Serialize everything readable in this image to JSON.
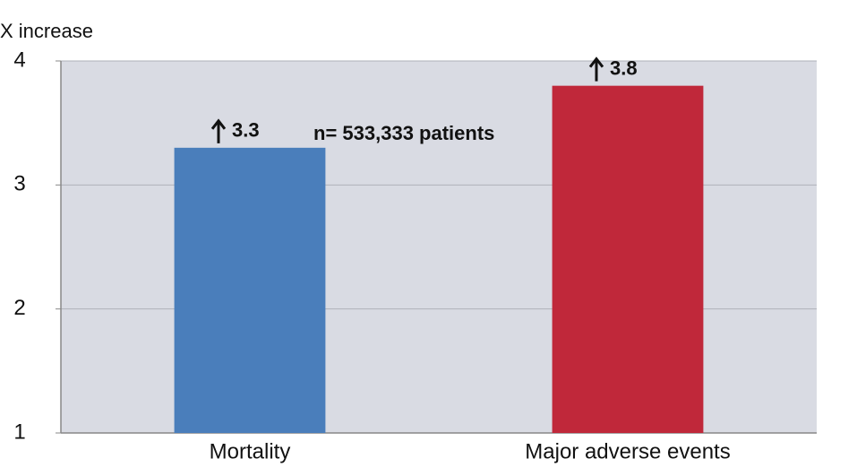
{
  "chart_data": {
    "type": "bar",
    "y_axis_label": "X increase",
    "annotation": "n= 533,333 patients",
    "categories": [
      "Mortality",
      "Major adverse events"
    ],
    "values": [
      3.3,
      3.8
    ],
    "colors": [
      "#4a7ebb",
      "#c0283a"
    ],
    "ylim": [
      1,
      4
    ],
    "yticks": [
      1,
      2,
      3,
      4
    ],
    "grid": true
  }
}
